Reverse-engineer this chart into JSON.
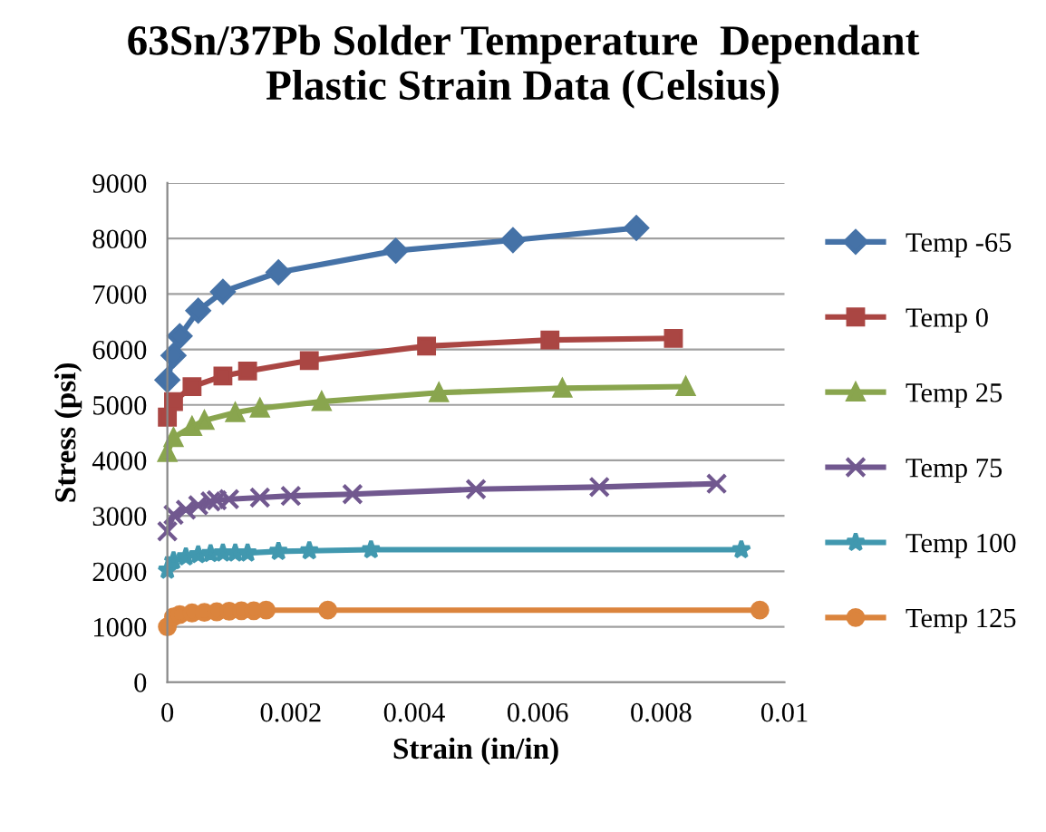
{
  "chart_data": {
    "type": "line",
    "title": "63Sn/37Pb Solder Temperature  Dependant\nPlastic Strain Data (Celsius)",
    "xlabel": "Strain (in/in)",
    "ylabel": "Stress (psi)",
    "xlim": [
      0,
      0.01
    ],
    "xticks": [
      0,
      0.002,
      0.004,
      0.006,
      0.008,
      0.01
    ],
    "ylim": [
      0,
      9000
    ],
    "yticks": [
      0,
      1000,
      2000,
      3000,
      4000,
      5000,
      6000,
      7000,
      8000,
      9000
    ],
    "grid": "y",
    "legend": "right",
    "line_style": "solid",
    "series": [
      {
        "name": "Temp -65",
        "color": "#4572a7",
        "marker": "diamond",
        "x": [
          0,
          0.0001,
          0.0002,
          0.0005,
          0.0009,
          0.0018,
          0.0037,
          0.0056,
          0.0076
        ],
        "values": [
          5450,
          5890,
          6240,
          6700,
          7040,
          7390,
          7780,
          7970,
          8190
        ]
      },
      {
        "name": "Temp 0",
        "color": "#aa4643",
        "marker": "square",
        "x": [
          0,
          0.0001,
          0.0004,
          0.0009,
          0.0013,
          0.0023,
          0.0042,
          0.0062,
          0.0082
        ],
        "values": [
          4780,
          5060,
          5330,
          5520,
          5610,
          5800,
          6060,
          6170,
          6200
        ]
      },
      {
        "name": "Temp 25",
        "color": "#89a54e",
        "marker": "triangle",
        "x": [
          0,
          0.0001,
          0.0004,
          0.0006,
          0.0011,
          0.0015,
          0.0025,
          0.0044,
          0.0064,
          0.0084
        ],
        "values": [
          4140,
          4410,
          4610,
          4720,
          4860,
          4940,
          5060,
          5220,
          5300,
          5330
        ]
      },
      {
        "name": "Temp 75",
        "color": "#71588f",
        "marker": "cross",
        "x": [
          0,
          0.0001,
          0.0003,
          0.0005,
          0.0007,
          0.0008,
          0.001,
          0.0015,
          0.002,
          0.003,
          0.005,
          0.007,
          0.0089
        ],
        "values": [
          2720,
          3020,
          3110,
          3190,
          3260,
          3280,
          3300,
          3330,
          3360,
          3390,
          3480,
          3520,
          3580
        ]
      },
      {
        "name": "Temp 100",
        "color": "#4198af",
        "marker": "star",
        "x": [
          0,
          0.0001,
          0.0003,
          0.0005,
          0.0007,
          0.0009,
          0.0011,
          0.0013,
          0.0018,
          0.0023,
          0.0033,
          0.0093
        ],
        "values": [
          2020,
          2190,
          2260,
          2300,
          2320,
          2330,
          2330,
          2330,
          2360,
          2370,
          2390,
          2390
        ]
      },
      {
        "name": "Temp 125",
        "color": "#db843d",
        "marker": "circle",
        "x": [
          0,
          0.0001,
          0.0002,
          0.0004,
          0.0006,
          0.0008,
          0.001,
          0.0012,
          0.0014,
          0.0016,
          0.0026,
          0.0096
        ],
        "values": [
          1000,
          1180,
          1220,
          1250,
          1260,
          1270,
          1280,
          1290,
          1290,
          1300,
          1300,
          1300
        ]
      }
    ]
  }
}
